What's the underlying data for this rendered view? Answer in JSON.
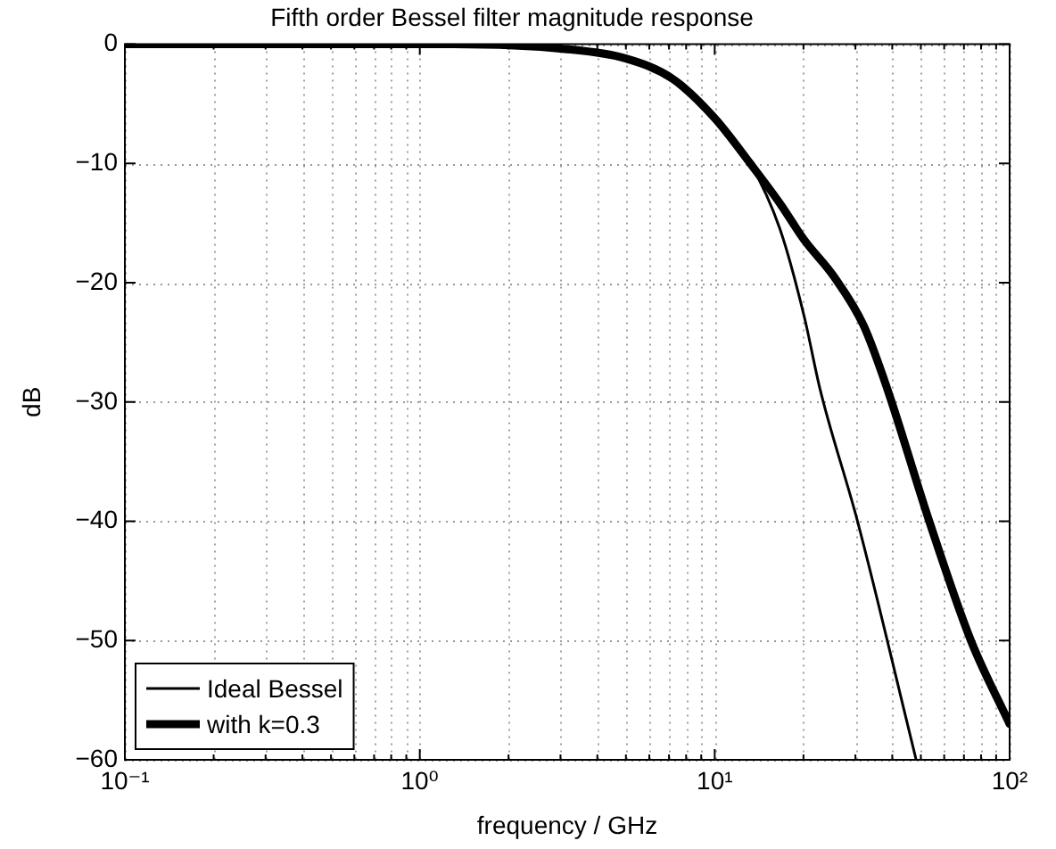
{
  "chart_data": {
    "type": "line",
    "title": "Fifth order Bessel filter magnitude response",
    "xlabel": "frequency / GHz",
    "ylabel": "dB",
    "log": "x",
    "grid": true,
    "legend": "bottom left",
    "marker": "none",
    "line_style": "solid",
    "xlim": [
      0.1,
      100
    ],
    "ylim": [
      -60,
      0
    ],
    "xticks": [
      {
        "value": 0.1,
        "label": "10⁻¹"
      },
      {
        "value": 0.2,
        "label": null
      },
      {
        "value": 0.3,
        "label": null
      },
      {
        "value": 0.4,
        "label": null
      },
      {
        "value": 0.5,
        "label": null
      },
      {
        "value": 0.6,
        "label": null
      },
      {
        "value": 0.7,
        "label": null
      },
      {
        "value": 0.8,
        "label": null
      },
      {
        "value": 0.9,
        "label": null
      },
      {
        "value": 1,
        "label": "10⁰"
      },
      {
        "value": 2,
        "label": null
      },
      {
        "value": 3,
        "label": null
      },
      {
        "value": 4,
        "label": null
      },
      {
        "value": 5,
        "label": null
      },
      {
        "value": 6,
        "label": null
      },
      {
        "value": 7,
        "label": null
      },
      {
        "value": 8,
        "label": null
      },
      {
        "value": 9,
        "label": null
      },
      {
        "value": 10,
        "label": "10¹"
      },
      {
        "value": 20,
        "label": null
      },
      {
        "value": 30,
        "label": null
      },
      {
        "value": 40,
        "label": null
      },
      {
        "value": 50,
        "label": null
      },
      {
        "value": 60,
        "label": null
      },
      {
        "value": 70,
        "label": null
      },
      {
        "value": 80,
        "label": null
      },
      {
        "value": 90,
        "label": null
      },
      {
        "value": 100,
        "label": "10²"
      }
    ],
    "yticks": [
      -60,
      -50,
      -40,
      -30,
      -20,
      -10,
      0
    ],
    "series": [
      {
        "name": "Ideal Bessel",
        "color": "#000000",
        "x": [
          0.1,
          1.23,
          3.1,
          5.0,
          7.2,
          10,
          13.2,
          16.7,
          20.1,
          22.8,
          30.5,
          48.2
        ],
        "values": [
          0,
          0,
          -0.4,
          -1.2,
          -2.9,
          -6.2,
          -10,
          -15.6,
          -22.8,
          -29,
          -40,
          -60
        ]
      },
      {
        "name": "with k=0.3",
        "color": "#000000",
        "x": [
          0.1,
          1.23,
          3.1,
          5.0,
          7.2,
          10,
          13.2,
          16.7,
          20.1,
          25.4,
          32,
          38.6,
          53.4,
          73.9,
          100
        ],
        "values": [
          0,
          0,
          -0.4,
          -1.2,
          -2.9,
          -6.2,
          -10,
          -13.4,
          -16.4,
          -19.5,
          -23.6,
          -29,
          -40,
          -50,
          -57
        ]
      }
    ]
  }
}
